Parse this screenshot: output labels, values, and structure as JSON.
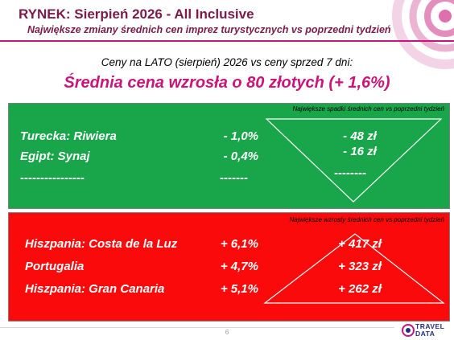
{
  "header": {
    "title": "RYNEK: Sierpień 2026 - All Inclusive",
    "subtitle": "Największe zmiany średnich cen imprez turystycznych vs poprzedni tydzień"
  },
  "intro": "Ceny na LATO (sierpień) 2026 vs ceny sprzed 7 dni:",
  "headline": "Średnia cena wzrosła o 80 złotych (+ 1,6%)",
  "decreases": {
    "note": "Największe spadki średnich cen vs poprzedni tydzień",
    "rows": [
      {
        "name": "Turecka: Riwiera",
        "pct": "-  1,0%",
        "amt": "- 48 zł"
      },
      {
        "name": "Egipt: Synaj",
        "pct": "-  0,4%",
        "amt": "- 16 zł"
      }
    ],
    "dash_name": "----------------",
    "dash_pct": "-------",
    "dash_amt": "--------"
  },
  "increases": {
    "note": "Największe wzrosty średnich cen vs poprzedni tydzień",
    "rows": [
      {
        "name": "Hiszpania: Costa de la Luz",
        "pct": "+ 6,1%",
        "amt": "+ 417 zł"
      },
      {
        "name": "Portugalia",
        "pct": "+ 4,7%",
        "amt": "+ 323 zł"
      },
      {
        "name": "Hiszpania: Gran Canaria",
        "pct": "+ 5,1%",
        "amt": "+ 262 zł"
      }
    ]
  },
  "footer": {
    "page_number": "6",
    "logo_line1": "TRAVEL",
    "logo_line2": "DATA"
  },
  "colors": {
    "accent": "#c9147a",
    "title": "#7a1b4a",
    "green_panel": "#19a54a",
    "red_panel": "#fa0a0a"
  }
}
